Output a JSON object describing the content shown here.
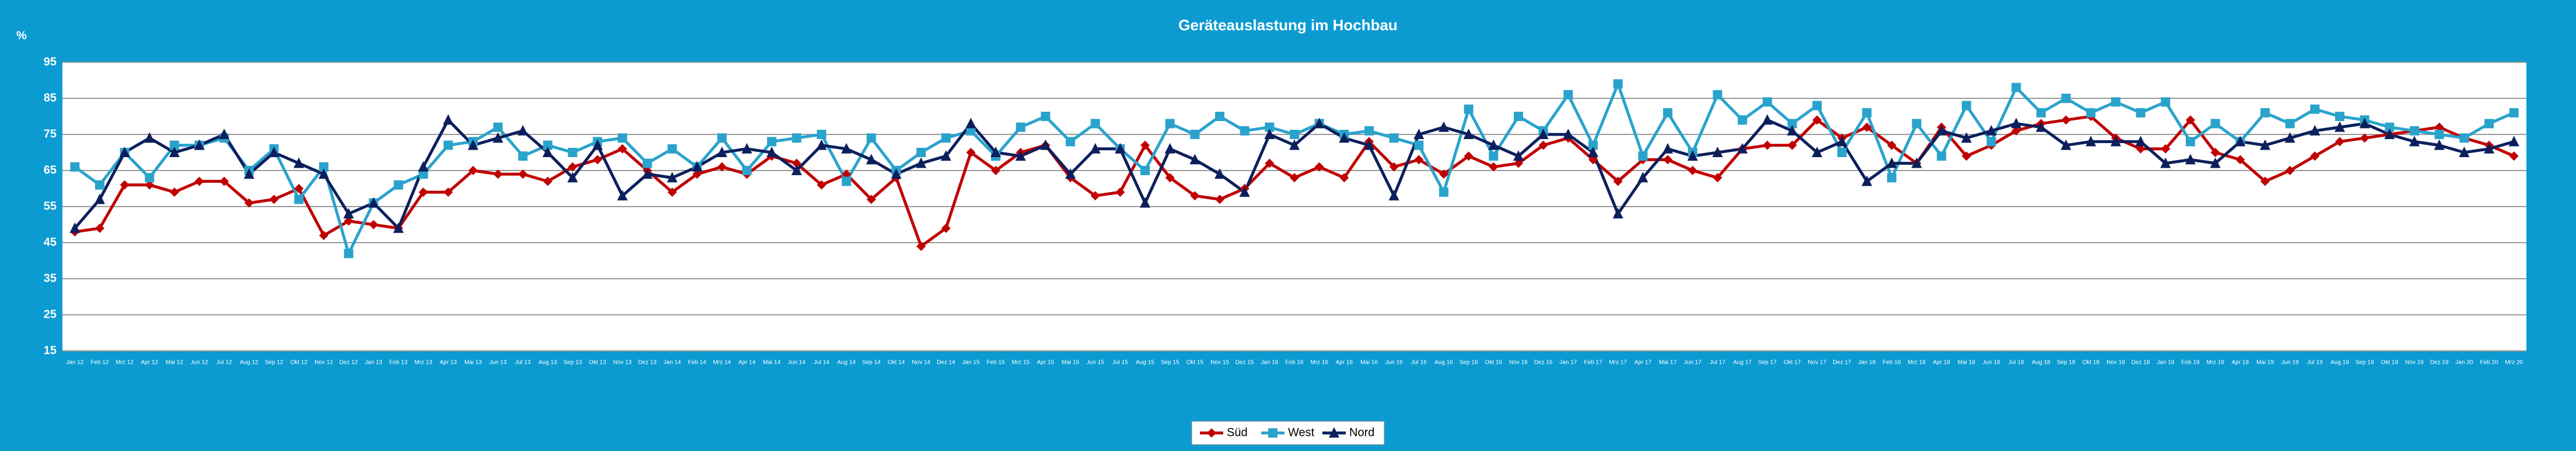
{
  "chart_data": {
    "type": "line",
    "title": "Geräteauslastung im Hochbau",
    "y_label": "%",
    "categories": [
      "Jan 12",
      "Feb 12",
      "Mrz 12",
      "Apr 12",
      "Mai 12",
      "Jun 12",
      "Jul 12",
      "Aug 12",
      "Sep 12",
      "Okt 12",
      "Nov 12",
      "Dez 12",
      "Jan 13",
      "Feb 13",
      "Mrz 13",
      "Apr 13",
      "Mai 13",
      "Jun 13",
      "Jul 13",
      "Aug 13",
      "Sep 13",
      "Okt 13",
      "Nov 13",
      "Dez 13",
      "Jan 14",
      "Feb 14",
      "Mrz 14",
      "Apr 14",
      "Mai 14",
      "Jun 14",
      "Jul 14",
      "Aug 14",
      "Sep 14",
      "Okt 14",
      "Nov 14",
      "Dez 14",
      "Jan 15",
      "Feb 15",
      "Mrz 15",
      "Apr 15",
      "Mai 15",
      "Jun 15",
      "Jul 15",
      "Aug 15",
      "Sep 15",
      "Okt 15",
      "Nov 15",
      "Dez 15",
      "Jan 16",
      "Feb 16",
      "Mrz 16",
      "Apr 16",
      "Mai 16",
      "Jun 16",
      "Jul 16",
      "Aug 16",
      "Sep 16",
      "Okt 16",
      "Nov 16",
      "Dez 16",
      "Jan 17",
      "Feb 17",
      "Mrz 17",
      "Apr 17",
      "Mai 17",
      "Jun 17",
      "Jul 17",
      "Aug 17",
      "Sep 17",
      "Okt 17",
      "Nov 17",
      "Dez 17",
      "Jan 18",
      "Feb 18",
      "Mrz 18",
      "Apr 18",
      "Mai 18",
      "Jun 18",
      "Jul 18",
      "Aug 18",
      "Sep 18",
      "Okt 18",
      "Nov 18",
      "Dez 18",
      "Jan 19",
      "Feb 19",
      "Mrz 19",
      "Apr 19",
      "Mai 19",
      "Jun 19",
      "Jul 19",
      "Aug 19",
      "Sep 19",
      "Okt 19",
      "Nov 19",
      "Dez 19",
      "Jan 20",
      "Feb 20",
      "Mrz 20"
    ],
    "series": [
      {
        "name": "Süd",
        "color": "#c00000",
        "marker": "diamond",
        "values": [
          48,
          49,
          61,
          61,
          59,
          62,
          62,
          56,
          57,
          60,
          47,
          51,
          50,
          49,
          59,
          59,
          65,
          64,
          64,
          62,
          66,
          68,
          71,
          65,
          59,
          64,
          66,
          64,
          69,
          67,
          61,
          64,
          57,
          63,
          44,
          49,
          70,
          65,
          70,
          72,
          63,
          58,
          59,
          72,
          63,
          58,
          57,
          60,
          67,
          63,
          66,
          63,
          73,
          66,
          68,
          64,
          69,
          66,
          67,
          72,
          74,
          68,
          62,
          68,
          68,
          65,
          63,
          71,
          72,
          72,
          79,
          74,
          77,
          72,
          67,
          77,
          69,
          72,
          76,
          78,
          79,
          80,
          74,
          71,
          71,
          79,
          70,
          68,
          62,
          65,
          69,
          73,
          74,
          75,
          76,
          77,
          74,
          72,
          69
        ]
      },
      {
        "name": "West",
        "color": "#2aa3cc",
        "marker": "square",
        "values": [
          66,
          61,
          70,
          63,
          72,
          72,
          74,
          65,
          71,
          57,
          66,
          42,
          56,
          61,
          64,
          72,
          73,
          77,
          69,
          72,
          70,
          73,
          74,
          67,
          71,
          66,
          74,
          65,
          73,
          74,
          75,
          62,
          74,
          65,
          70,
          74,
          76,
          69,
          77,
          80,
          73,
          78,
          71,
          65,
          78,
          75,
          80,
          76,
          77,
          75,
          78,
          75,
          76,
          74,
          72,
          59,
          82,
          69,
          80,
          76,
          86,
          72,
          89,
          69,
          81,
          70,
          86,
          79,
          84,
          78,
          83,
          70,
          81,
          63,
          78,
          69,
          83,
          73,
          88,
          81,
          85,
          81,
          84,
          81,
          84,
          73,
          78,
          73,
          81,
          78,
          82,
          80,
          79,
          77,
          76,
          75,
          74,
          78,
          81
        ]
      },
      {
        "name": "Nord",
        "color": "#0c1f5c",
        "marker": "triangle",
        "values": [
          49,
          57,
          70,
          74,
          70,
          72,
          75,
          64,
          70,
          67,
          64,
          53,
          56,
          49,
          66,
          79,
          72,
          74,
          76,
          70,
          63,
          72,
          58,
          64,
          63,
          66,
          70,
          71,
          70,
          65,
          72,
          71,
          68,
          64,
          67,
          69,
          78,
          70,
          69,
          72,
          64,
          71,
          71,
          56,
          71,
          68,
          64,
          59,
          75,
          72,
          78,
          74,
          72,
          58,
          75,
          77,
          75,
          72,
          69,
          75,
          75,
          70,
          53,
          63,
          71,
          69,
          70,
          71,
          79,
          76,
          70,
          73,
          62,
          67,
          67,
          76,
          74,
          76,
          78,
          77,
          72,
          73,
          73,
          73,
          67,
          68,
          67,
          73,
          72,
          74,
          76,
          77,
          78,
          75,
          73,
          72,
          70,
          71,
          73
        ]
      }
    ],
    "ylim": [
      15,
      95
    ],
    "yticks": [
      15,
      25,
      35,
      45,
      55,
      65,
      75,
      85,
      95
    ],
    "grid": true,
    "legend": "bottom"
  }
}
